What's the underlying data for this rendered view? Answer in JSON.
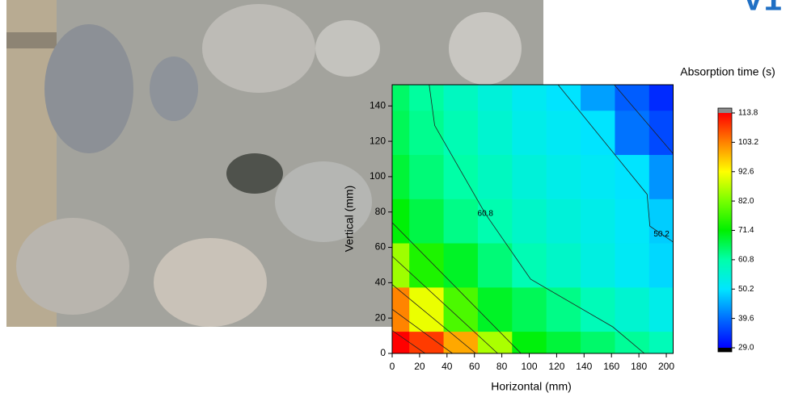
{
  "chart_data": {
    "type": "contour",
    "title": "V1",
    "xlabel": "Horizontal (mm)",
    "ylabel": "Vertical (mm)",
    "colorbar_label": "Absorption time (s)",
    "xlim": [
      0,
      205
    ],
    "ylim": [
      0,
      152
    ],
    "xticks": [
      0,
      20,
      40,
      60,
      80,
      100,
      120,
      140,
      160,
      180,
      200
    ],
    "yticks": [
      0,
      20,
      40,
      60,
      80,
      100,
      120,
      140
    ],
    "cticks": [
      {
        "value": 29,
        "label": "29.0"
      },
      39.6,
      50.2,
      60.8,
      71.4,
      {
        "value": 82,
        "label": "82.0"
      },
      92.6,
      103.2,
      113.8
    ],
    "x": [
      0,
      25,
      50,
      75,
      100,
      125,
      150,
      175,
      200
    ],
    "y": [
      0,
      25,
      50,
      75,
      100,
      125,
      150
    ],
    "z": [
      [
        116,
        109,
        100,
        86,
        70.7,
        67.8,
        64.8,
        61.9,
        59
      ],
      [
        103,
        91,
        78,
        69,
        66,
        63,
        59,
        56,
        53
      ],
      [
        85,
        74,
        69,
        64,
        59.5,
        57,
        54,
        51.5,
        49
      ],
      [
        71,
        67,
        63,
        60,
        57,
        55,
        53,
        51,
        48
      ],
      [
        68,
        64,
        61,
        58,
        55,
        53,
        51.5,
        50,
        43
      ],
      [
        66,
        62.5,
        59.5,
        56,
        53,
        51.5,
        50,
        40,
        36
      ],
      [
        65,
        61.5,
        58,
        55,
        52,
        50,
        44,
        38,
        33
      ]
    ],
    "contours": [
      {
        "label": 60.8,
        "x": [
          27,
          31,
          68,
          101,
          161,
          184
        ],
        "y": [
          152,
          129,
          79,
          42,
          15,
          0
        ]
      },
      {
        "label": 50.2,
        "x": [
          121,
          186,
          188,
          205
        ],
        "y": [
          152,
          90,
          72,
          63
        ]
      },
      {
        "x": [
          162,
          205
        ],
        "y": [
          152,
          113
        ]
      },
      {
        "x": [
          0,
          94
        ],
        "y": [
          74,
          0
        ]
      },
      {
        "x": [
          0,
          77
        ],
        "y": [
          55,
          0
        ]
      },
      {
        "x": [
          0,
          61
        ],
        "y": [
          39,
          0
        ]
      },
      {
        "x": [
          0,
          44
        ],
        "y": [
          25,
          0
        ]
      },
      {
        "x": [
          0,
          24
        ],
        "y": [
          13,
          0
        ]
      }
    ]
  }
}
